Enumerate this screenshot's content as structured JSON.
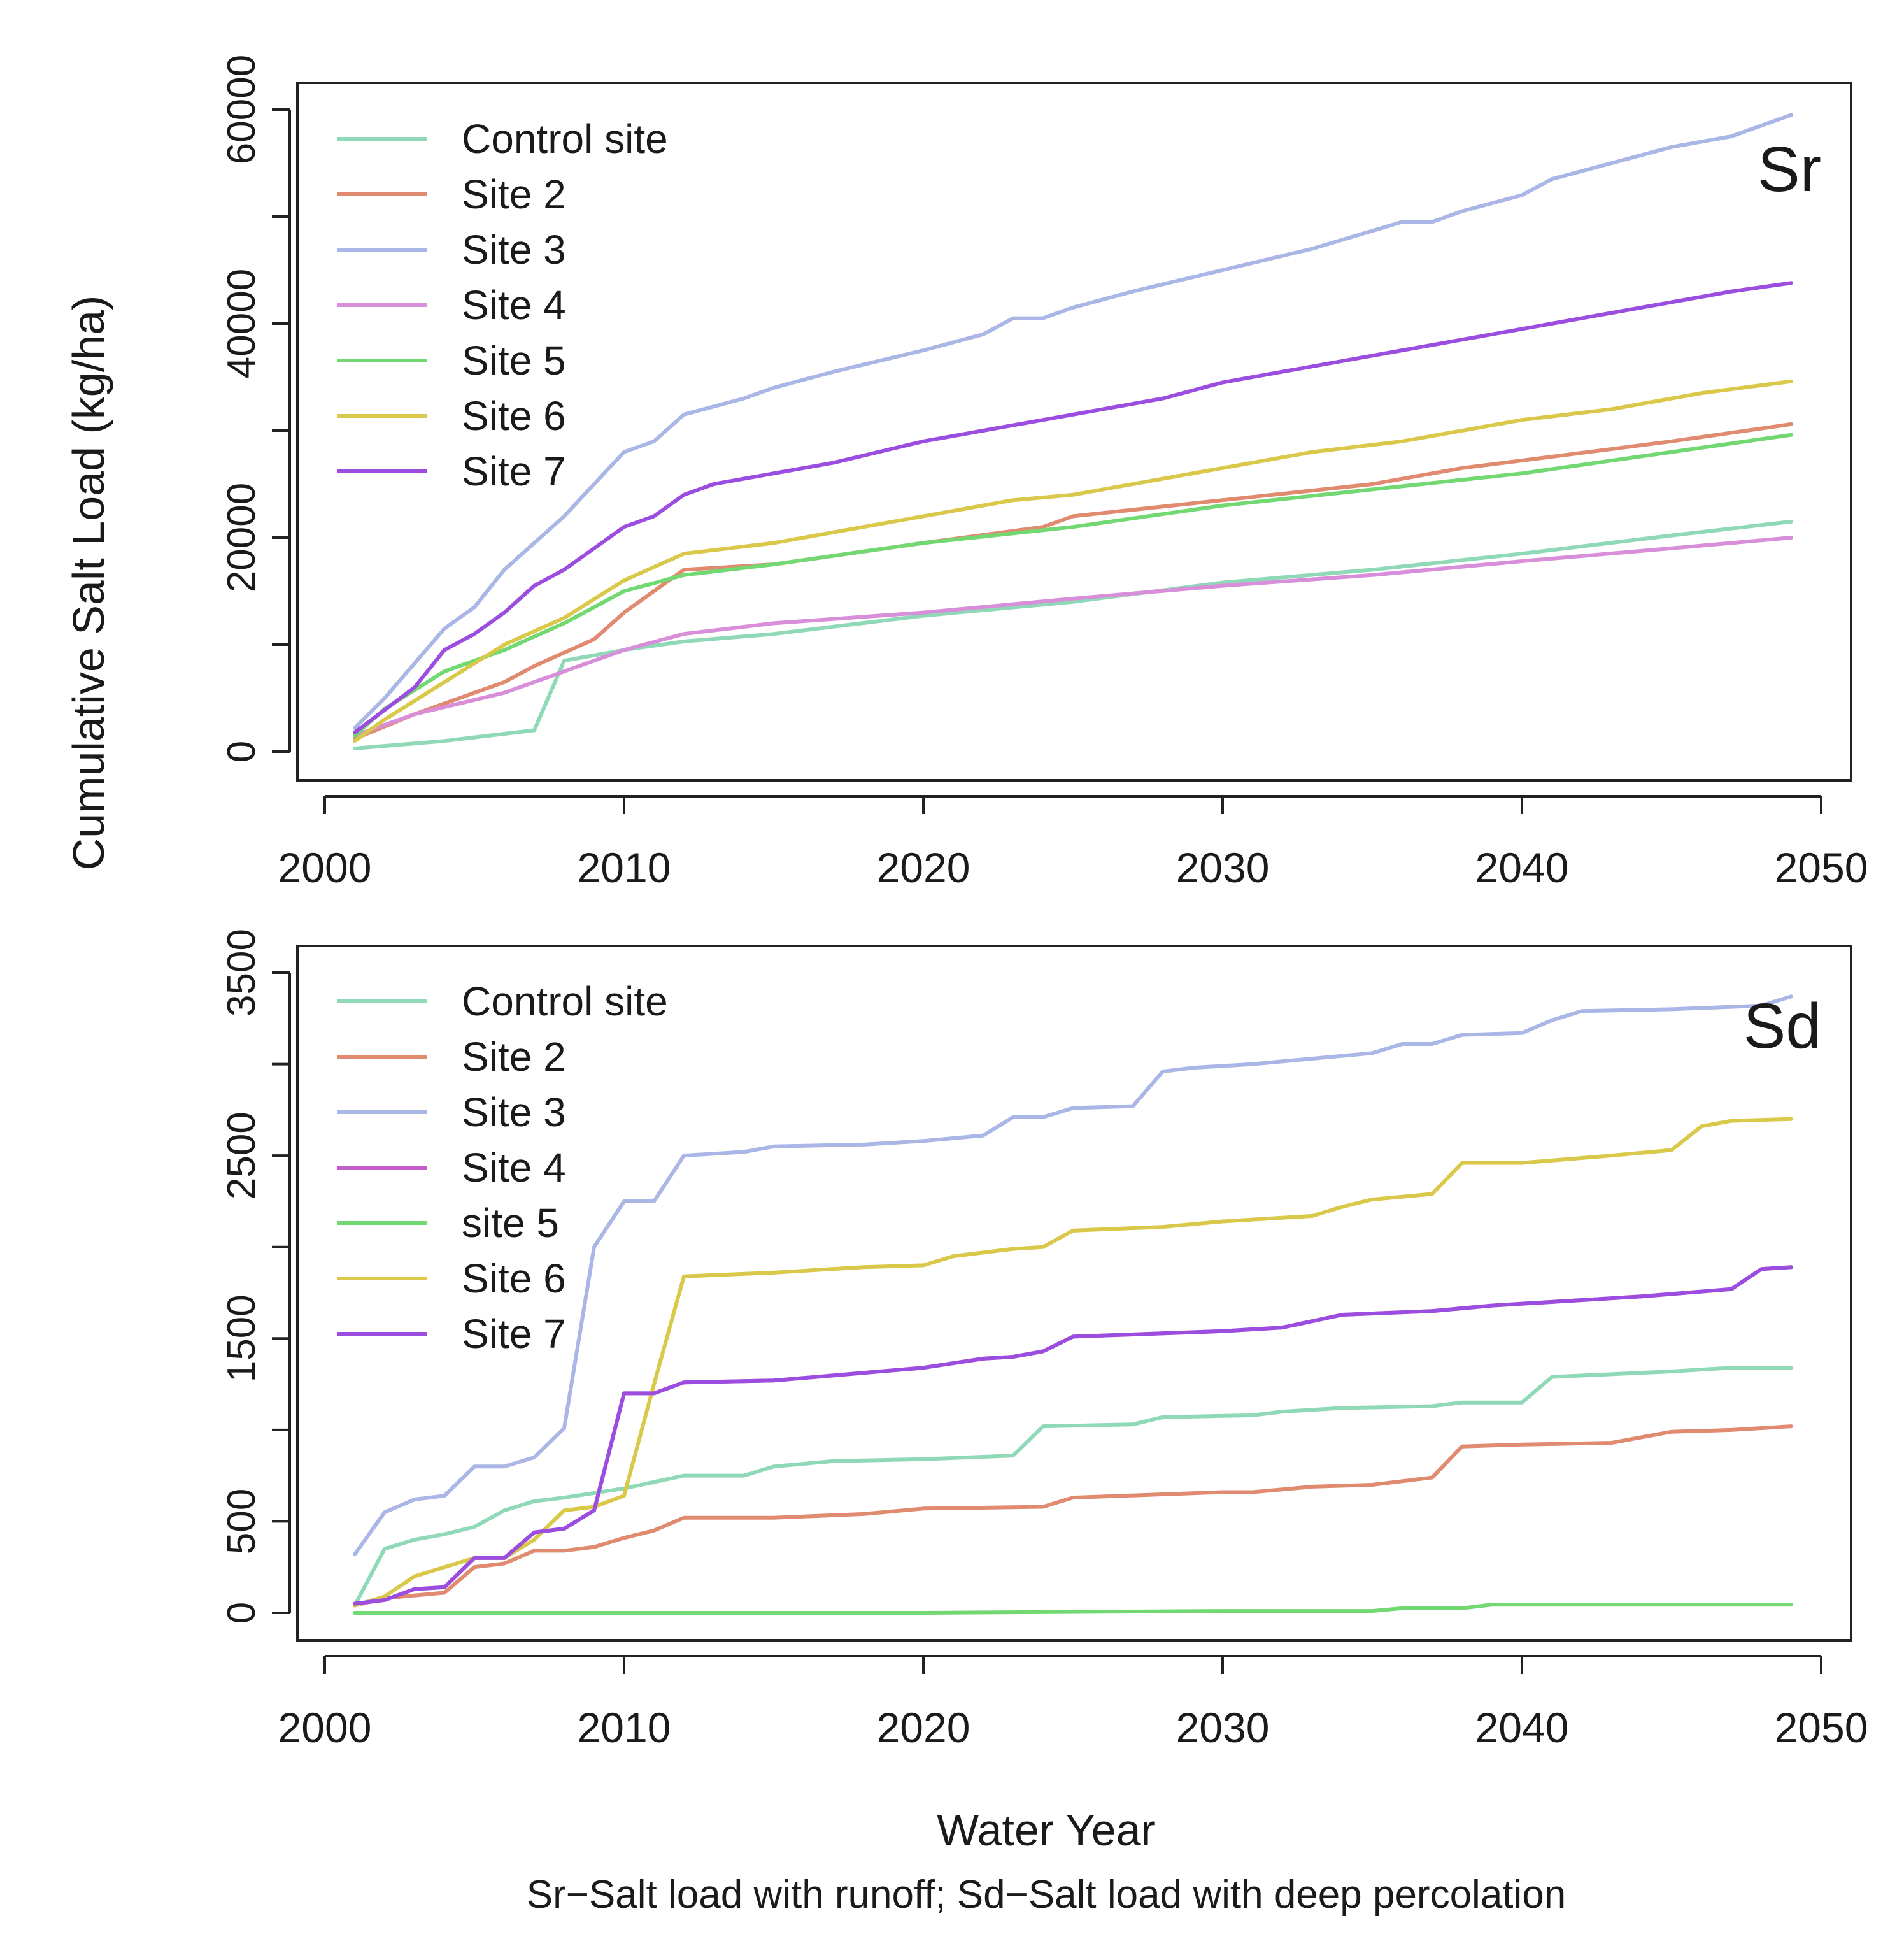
{
  "figure": {
    "ylabel": "Cumulative Salt Load (kg/ha)",
    "xlabel": "Water Year",
    "caption": "Sr−Salt load with runoff; Sd−Salt load with deep percolation"
  },
  "chart_data": [
    {
      "type": "line",
      "panel_label": "Sr",
      "xlabel": "",
      "ylabel": "",
      "xlim": [
        2000,
        2050
      ],
      "ylim": [
        0,
        60000
      ],
      "x_ticks": [
        2000,
        2010,
        2020,
        2030,
        2040,
        2050
      ],
      "x_tick_labels": [
        "2000",
        "2010",
        "2020",
        "2030",
        "2040",
        "2050"
      ],
      "y_ticks": [
        0,
        10000,
        20000,
        30000,
        40000,
        50000,
        60000
      ],
      "y_tick_labels": [
        "0",
        "",
        "20000",
        "",
        "40000",
        "",
        "60000"
      ],
      "legend_position": "top-left",
      "series": [
        {
          "name": "Control site",
          "color": "#8fd8b8",
          "x": [
            2001,
            2004,
            2007,
            2008,
            2010,
            2012,
            2015,
            2020,
            2025,
            2030,
            2035,
            2040,
            2045,
            2049
          ],
          "y": [
            300,
            1000,
            2000,
            8500,
            9500,
            10300,
            11000,
            12700,
            14000,
            15800,
            17000,
            18500,
            20200,
            21500
          ]
        },
        {
          "name": "Site 2",
          "color": "#e08a70",
          "x": [
            2001,
            2003,
            2006,
            2007,
            2009,
            2010,
            2012,
            2015,
            2020,
            2024,
            2025,
            2030,
            2035,
            2038,
            2040,
            2045,
            2049
          ],
          "y": [
            1200,
            3500,
            6500,
            8000,
            10500,
            13000,
            17000,
            17500,
            19500,
            21000,
            22000,
            23500,
            25000,
            26500,
            27200,
            29000,
            30600
          ]
        },
        {
          "name": "Site 3",
          "color": "#a9b6e6",
          "x": [
            2001,
            2002,
            2004,
            2005,
            2006,
            2008,
            2009,
            2010,
            2011,
            2012,
            2014,
            2015,
            2017,
            2020,
            2022,
            2023,
            2024,
            2025,
            2027,
            2030,
            2033,
            2036,
            2037,
            2038,
            2040,
            2041,
            2043,
            2045,
            2047,
            2049
          ],
          "y": [
            2200,
            5000,
            11500,
            13500,
            17000,
            22000,
            25000,
            28000,
            29000,
            31500,
            33000,
            34000,
            35500,
            37500,
            39000,
            40500,
            40500,
            41500,
            43000,
            45000,
            47000,
            49500,
            49500,
            50500,
            52000,
            53500,
            55000,
            56500,
            57500,
            59500
          ]
        },
        {
          "name": "Site 4",
          "color": "#d98ed9",
          "x": [
            2001,
            2003,
            2006,
            2008,
            2010,
            2012,
            2015,
            2020,
            2025,
            2030,
            2035,
            2040,
            2045,
            2049
          ],
          "y": [
            1500,
            3500,
            5500,
            7500,
            9500,
            11000,
            12000,
            13000,
            14300,
            15500,
            16500,
            17800,
            19000,
            20000
          ]
        },
        {
          "name": "Site 5",
          "color": "#72d872",
          "x": [
            2001,
            2002,
            2004,
            2006,
            2008,
            2010,
            2012,
            2015,
            2020,
            2025,
            2030,
            2035,
            2040,
            2045,
            2049
          ],
          "y": [
            1500,
            4000,
            7500,
            9500,
            12000,
            15000,
            16500,
            17500,
            19500,
            21000,
            23000,
            24500,
            26000,
            28000,
            29600
          ]
        },
        {
          "name": "Site 6",
          "color": "#d9c84a",
          "x": [
            2001,
            2002,
            2004,
            2006,
            2008,
            2010,
            2012,
            2015,
            2020,
            2023,
            2025,
            2030,
            2033,
            2036,
            2040,
            2043,
            2046,
            2049
          ],
          "y": [
            1000,
            3000,
            6500,
            10000,
            12500,
            16000,
            18500,
            19500,
            22000,
            23500,
            24000,
            26500,
            28000,
            29000,
            31000,
            32000,
            33500,
            34600
          ]
        },
        {
          "name": "Site 7",
          "color": "#9b4de0",
          "x": [
            2001,
            2003,
            2004,
            2005,
            2006,
            2007,
            2008,
            2010,
            2011,
            2012,
            2013,
            2015,
            2017,
            2020,
            2023,
            2025,
            2026,
            2028,
            2030,
            2032,
            2034,
            2036,
            2038,
            2040,
            2041,
            2043,
            2045,
            2047,
            2049
          ],
          "y": [
            1800,
            6000,
            9500,
            11000,
            13000,
            15500,
            17000,
            21000,
            22000,
            24000,
            25000,
            26000,
            27000,
            29000,
            30500,
            31500,
            32000,
            33000,
            34500,
            35500,
            36500,
            37500,
            38500,
            39500,
            40000,
            41000,
            42000,
            43000,
            43800
          ]
        }
      ]
    },
    {
      "type": "line",
      "panel_label": "Sd",
      "xlabel": "",
      "ylabel": "",
      "xlim": [
        2000,
        2050
      ],
      "ylim": [
        0,
        3500
      ],
      "x_ticks": [
        2000,
        2010,
        2020,
        2030,
        2040,
        2050
      ],
      "x_tick_labels": [
        "2000",
        "2010",
        "2020",
        "2030",
        "2040",
        "2050"
      ],
      "y_ticks": [
        0,
        500,
        1000,
        1500,
        2000,
        2500,
        3000,
        3500
      ],
      "y_tick_labels": [
        "0",
        "500",
        "",
        "1500",
        "",
        "2500",
        "",
        "3500"
      ],
      "legend_position": "top-left",
      "series": [
        {
          "name": "Control site",
          "color": "#8fd8b8",
          "x": [
            2001,
            2002,
            2003,
            2004,
            2005,
            2006,
            2007,
            2008,
            2010,
            2012,
            2014,
            2015,
            2017,
            2020,
            2023,
            2024,
            2027,
            2028,
            2031,
            2032,
            2034,
            2037,
            2038,
            2040,
            2041,
            2045,
            2047,
            2049
          ],
          "y": [
            40,
            350,
            400,
            430,
            470,
            560,
            610,
            630,
            680,
            750,
            750,
            800,
            830,
            840,
            860,
            1020,
            1030,
            1070,
            1080,
            1100,
            1120,
            1130,
            1150,
            1150,
            1290,
            1320,
            1340,
            1340
          ]
        },
        {
          "name": "Site 2",
          "color": "#e08a70",
          "x": [
            2001,
            2002,
            2004,
            2005,
            2006,
            2007,
            2008,
            2009,
            2010,
            2011,
            2012,
            2015,
            2018,
            2020,
            2024,
            2025,
            2030,
            2031,
            2033,
            2035,
            2036,
            2037,
            2038,
            2040,
            2043,
            2045,
            2047,
            2049
          ],
          "y": [
            40,
            80,
            110,
            250,
            270,
            340,
            340,
            360,
            410,
            450,
            520,
            520,
            540,
            570,
            580,
            630,
            660,
            660,
            690,
            700,
            720,
            740,
            910,
            920,
            930,
            990,
            1000,
            1020
          ]
        },
        {
          "name": "Site 3",
          "color": "#a9b6e6",
          "x": [
            2001,
            2002,
            2003,
            2004,
            2005,
            2006,
            2007,
            2008,
            2009,
            2010,
            2011,
            2012,
            2014,
            2015,
            2018,
            2020,
            2022,
            2023,
            2024,
            2025,
            2027,
            2028,
            2029,
            2031,
            2033,
            2035,
            2036,
            2037,
            2038,
            2040,
            2041,
            2042,
            2045,
            2048,
            2049
          ],
          "y": [
            320,
            550,
            620,
            640,
            800,
            800,
            850,
            1010,
            2000,
            2250,
            2250,
            2500,
            2520,
            2550,
            2560,
            2580,
            2610,
            2710,
            2710,
            2760,
            2770,
            2960,
            2980,
            3000,
            3030,
            3060,
            3110,
            3110,
            3160,
            3170,
            3240,
            3290,
            3300,
            3320,
            3370
          ]
        },
        {
          "name": "Site 4",
          "color": "#c35ec8",
          "x": [
            2001,
            2002,
            2003,
            2004,
            2005,
            2006,
            2007,
            2008,
            2009,
            2010,
            2011,
            2012,
            2015,
            2020,
            2022,
            2023,
            2024,
            2025,
            2030,
            2032,
            2034,
            2037,
            2039,
            2041,
            2044,
            2047,
            2048,
            2049
          ],
          "y": [
            50,
            70,
            130,
            140,
            300,
            300,
            440,
            460,
            560,
            1200,
            1200,
            1260,
            1270,
            1340,
            1390,
            1400,
            1430,
            1510,
            1540,
            1560,
            1630,
            1650,
            1680,
            1700,
            1730,
            1770,
            1880,
            1890
          ]
        },
        {
          "name": "site 5",
          "color": "#72d872",
          "x": [
            2001,
            2010,
            2020,
            2030,
            2035,
            2036,
            2038,
            2039,
            2049
          ],
          "y": [
            0,
            0,
            0,
            10,
            10,
            25,
            25,
            45,
            45
          ]
        },
        {
          "name": "Site 6",
          "color": "#d9c84a",
          "x": [
            2001,
            2002,
            2003,
            2004,
            2005,
            2006,
            2007,
            2008,
            2009,
            2010,
            2011,
            2012,
            2015,
            2018,
            2020,
            2021,
            2023,
            2024,
            2025,
            2028,
            2030,
            2032,
            2033,
            2034,
            2035,
            2037,
            2038,
            2040,
            2043,
            2045,
            2046,
            2047,
            2049
          ],
          "y": [
            40,
            90,
            200,
            250,
            300,
            300,
            400,
            560,
            580,
            640,
            1250,
            1840,
            1860,
            1890,
            1900,
            1950,
            1990,
            2000,
            2090,
            2110,
            2140,
            2160,
            2170,
            2220,
            2260,
            2290,
            2460,
            2460,
            2500,
            2530,
            2660,
            2690,
            2700
          ]
        },
        {
          "name": "Site 7",
          "color": "#9b4de0",
          "x": [
            2001,
            2002,
            2003,
            2004,
            2005,
            2006,
            2007,
            2008,
            2009,
            2010,
            2011,
            2012,
            2015,
            2020,
            2022,
            2023,
            2024,
            2025,
            2030,
            2032,
            2034,
            2037,
            2039,
            2041,
            2044,
            2047,
            2048,
            2049
          ],
          "y": [
            50,
            70,
            130,
            140,
            300,
            300,
            440,
            460,
            560,
            1200,
            1200,
            1260,
            1270,
            1340,
            1390,
            1400,
            1430,
            1510,
            1540,
            1560,
            1630,
            1650,
            1680,
            1700,
            1730,
            1770,
            1880,
            1890
          ]
        }
      ]
    }
  ]
}
